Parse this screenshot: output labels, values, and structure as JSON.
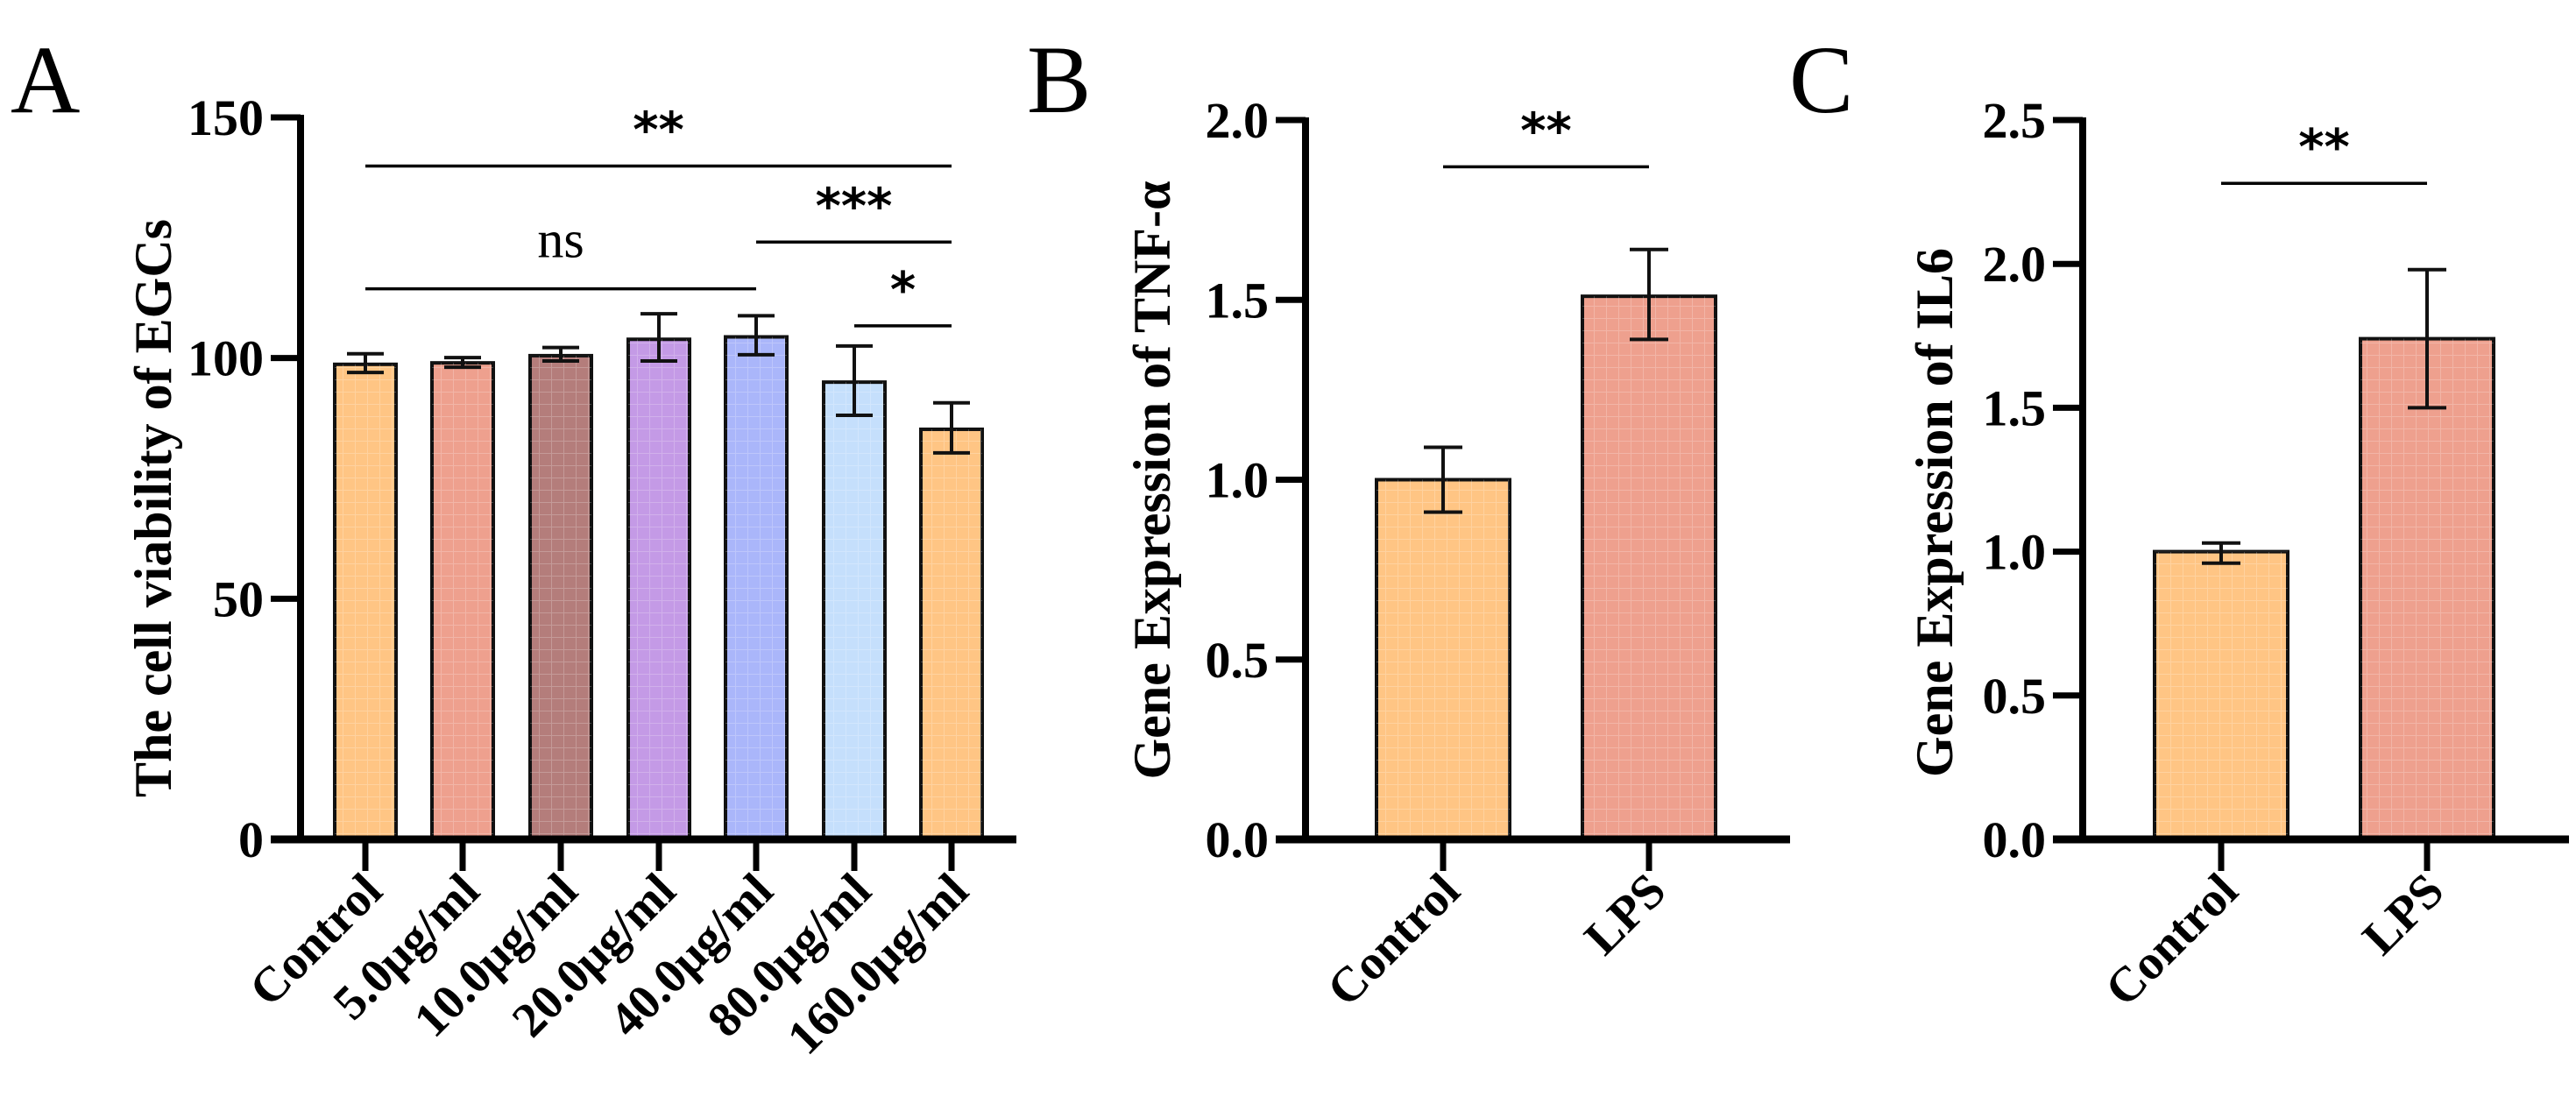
{
  "chart_data": [
    {
      "panel": "A",
      "type": "bar",
      "ylabel": "The cell viability of EGCs",
      "xlabel": "",
      "ylim": [
        0,
        150
      ],
      "yticks": [
        0,
        50,
        100,
        150
      ],
      "ytick_labels": [
        "0",
        "50",
        "100",
        "150"
      ],
      "categories": [
        "Control",
        "5.0μg/ml",
        "10.0μg/ml",
        "20.0μg/ml",
        "40.0μg/ml",
        "80.0μg/ml",
        "160.0μg/ml"
      ],
      "values": [
        98.7,
        99.0,
        100.5,
        103.9,
        104.4,
        95.0,
        85.2
      ],
      "error_low": [
        97.0,
        98.1,
        99.4,
        99.4,
        100.7,
        88.1,
        80.3
      ],
      "error_high": [
        100.9,
        100.1,
        102.2,
        109.2,
        108.8,
        102.5,
        90.7
      ],
      "colors": [
        "#FFC584",
        "#EEA08E",
        "#B47D7B",
        "#C49AE6",
        "#AAB6FA",
        "#C5DFFC",
        "#FFC584"
      ],
      "significance": [
        {
          "from": 0,
          "to": 6,
          "y": 139.9,
          "label": "**"
        },
        {
          "from": 4,
          "to": 6,
          "y": 124.1,
          "label": "***"
        },
        {
          "from": 0,
          "to": 4,
          "y": 114.4,
          "label": "ns"
        },
        {
          "from": 5,
          "to": 6,
          "y": 106.7,
          "label": "*"
        }
      ]
    },
    {
      "panel": "B",
      "type": "bar",
      "ylabel": "Gene Expression of TNF-α",
      "xlabel": "",
      "ylim": [
        0,
        2.0
      ],
      "yticks": [
        0,
        0.5,
        1.0,
        1.5,
        2.0
      ],
      "ytick_labels": [
        "0.0",
        "0.5",
        "1.0",
        "1.5",
        "2.0"
      ],
      "categories": [
        "Control",
        "LPS"
      ],
      "values": [
        1.0,
        1.51
      ],
      "error_low": [
        0.91,
        1.39
      ],
      "error_high": [
        1.09,
        1.64
      ],
      "colors": [
        "#FFC584",
        "#EEA08E"
      ],
      "significance": [
        {
          "from": 0,
          "to": 1,
          "y": 1.87,
          "label": "**"
        }
      ]
    },
    {
      "panel": "C",
      "type": "bar",
      "ylabel": "Gene Expression of IL6",
      "xlabel": "",
      "ylim": [
        0,
        2.5
      ],
      "yticks": [
        0,
        0.5,
        1.0,
        1.5,
        2.0,
        2.5
      ],
      "ytick_labels": [
        "0.0",
        "0.5",
        "1.0",
        "1.5",
        "2.0",
        "2.5"
      ],
      "categories": [
        "Control",
        "LPS"
      ],
      "values": [
        1.0,
        1.74
      ],
      "error_low": [
        0.96,
        1.5
      ],
      "error_high": [
        1.03,
        1.98
      ],
      "colors": [
        "#FFC584",
        "#EEA08E"
      ],
      "significance": [
        {
          "from": 0,
          "to": 1,
          "y": 2.28,
          "label": "**"
        }
      ]
    }
  ]
}
